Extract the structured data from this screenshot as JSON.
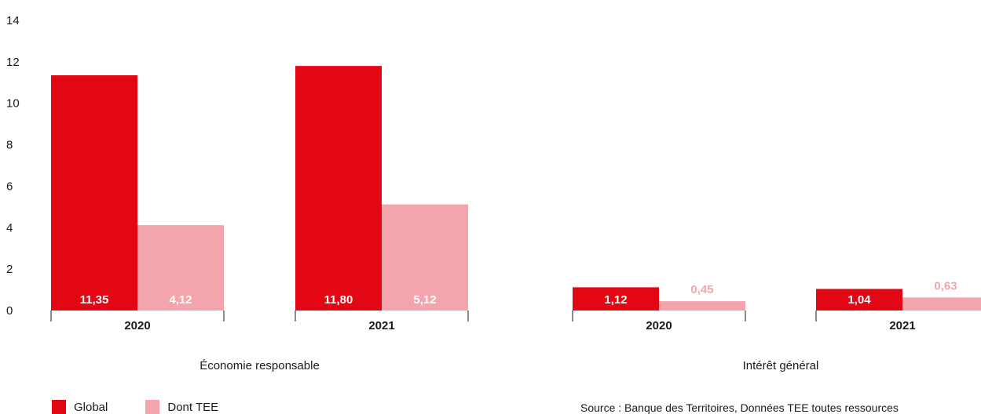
{
  "chart_data": {
    "type": "bar",
    "ylim": [
      0,
      14
    ],
    "yticks": [
      0,
      2,
      4,
      6,
      8,
      10,
      12,
      14
    ],
    "grid": false,
    "legend_position": "bottom-left",
    "groups": [
      {
        "name": "Économie responsable",
        "categories": [
          "2020",
          "2021"
        ],
        "series": [
          {
            "name": "Global",
            "values": [
              11.35,
              11.8
            ],
            "labels": [
              "11,35",
              "11,80"
            ]
          },
          {
            "name": "Dont TEE",
            "values": [
              4.12,
              5.12
            ],
            "labels": [
              "4,12",
              "5,12"
            ]
          }
        ]
      },
      {
        "name": "Intérêt général",
        "categories": [
          "2020",
          "2021"
        ],
        "series": [
          {
            "name": "Global",
            "values": [
              1.12,
              1.04
            ],
            "labels": [
              "1,12",
              "1,04"
            ]
          },
          {
            "name": "Dont TEE",
            "values": [
              0.45,
              0.63
            ],
            "labels": [
              "0,45",
              "0,63"
            ]
          }
        ]
      }
    ],
    "colors": {
      "Global": "#e30613",
      "Dont TEE": "#f4a4ad"
    }
  },
  "legend": [
    {
      "label": "Global",
      "color": "#e30613"
    },
    {
      "label": "Dont TEE",
      "color": "#f4a4ad"
    }
  ],
  "source": "Source : Banque des Territoires, Données TEE toutes ressources"
}
